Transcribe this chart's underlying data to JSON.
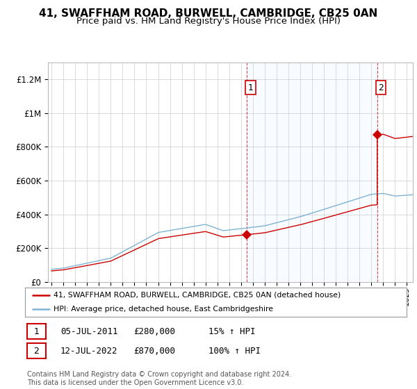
{
  "title": "41, SWAFFHAM ROAD, BURWELL, CAMBRIDGE, CB25 0AN",
  "subtitle": "Price paid vs. HM Land Registry's House Price Index (HPI)",
  "ylim": [
    0,
    1300000
  ],
  "yticks": [
    0,
    200000,
    400000,
    600000,
    800000,
    1000000,
    1200000
  ],
  "ytick_labels": [
    "£0",
    "£200K",
    "£400K",
    "£600K",
    "£800K",
    "£1M",
    "£1.2M"
  ],
  "hpi_color": "#7fb3d3",
  "price_color": "#cc0000",
  "shade_color": "#ddeeff",
  "annotation1_label": "1",
  "annotation2_label": "2",
  "sale1_year": 2011.5,
  "sale1_price": 280000,
  "sale2_year": 2022.5,
  "sale2_price": 870000,
  "legend_line1": "41, SWAFFHAM ROAD, BURWELL, CAMBRIDGE, CB25 0AN (detached house)",
  "legend_line2": "HPI: Average price, detached house, East Cambridgeshire",
  "table_row1": [
    "1",
    "05-JUL-2011",
    "£280,000",
    "15% ↑ HPI"
  ],
  "table_row2": [
    "2",
    "12-JUL-2022",
    "£870,000",
    "100% ↑ HPI"
  ],
  "footer": "Contains HM Land Registry data © Crown copyright and database right 2024.\nThis data is licensed under the Open Government Licence v3.0.",
  "grid_color": "#cccccc",
  "title_fontsize": 11,
  "subtitle_fontsize": 9.5,
  "xstart": 1995,
  "xend": 2025
}
